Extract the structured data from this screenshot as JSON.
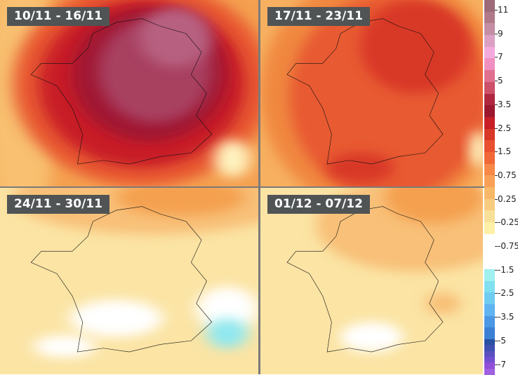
{
  "panels": [
    {
      "label": "10/11 - 16/11",
      "background": "#f4a050",
      "blobs": [
        {
          "c": "#f8c070",
          "cx": 8,
          "cy": 50,
          "rx": 14,
          "ry": 80
        },
        {
          "c": "#e85a30",
          "cx": 55,
          "cy": 45,
          "rx": 50,
          "ry": 55
        },
        {
          "c": "#c81e28",
          "cx": 55,
          "cy": 45,
          "rx": 40,
          "ry": 45
        },
        {
          "c": "#a01830",
          "cx": 58,
          "cy": 40,
          "rx": 30,
          "ry": 36
        },
        {
          "c": "#a84060",
          "cx": 60,
          "cy": 38,
          "rx": 22,
          "ry": 28
        },
        {
          "c": "#b86080",
          "cx": 68,
          "cy": 20,
          "rx": 14,
          "ry": 16
        },
        {
          "c": "#fff3c0",
          "cx": 90,
          "cy": 85,
          "rx": 7,
          "ry": 10
        }
      ]
    },
    {
      "label": "17/11 - 23/11",
      "background": "#f7b060",
      "blobs": [
        {
          "c": "#f08840",
          "cx": 55,
          "cy": 50,
          "rx": 55,
          "ry": 65
        },
        {
          "c": "#e85a30",
          "cx": 58,
          "cy": 52,
          "rx": 45,
          "ry": 55
        },
        {
          "c": "#d83828",
          "cx": 70,
          "cy": 25,
          "rx": 25,
          "ry": 25
        },
        {
          "c": "#d83828",
          "cx": 45,
          "cy": 90,
          "rx": 15,
          "ry": 8
        },
        {
          "c": "#fff3c0",
          "cx": 98,
          "cy": 80,
          "rx": 4,
          "ry": 10
        }
      ]
    },
    {
      "label": "24/11 - 30/11",
      "background": "#fbe4a4",
      "blobs": [
        {
          "c": "#f8c078",
          "cx": 60,
          "cy": 5,
          "rx": 55,
          "ry": 20
        },
        {
          "c": "#f4a050",
          "cx": 70,
          "cy": 5,
          "rx": 25,
          "ry": 10
        },
        {
          "c": "#ffffff",
          "cx": 45,
          "cy": 70,
          "rx": 18,
          "ry": 10
        },
        {
          "c": "#ffffff",
          "cx": 25,
          "cy": 85,
          "rx": 12,
          "ry": 6
        },
        {
          "c": "#ffffff",
          "cx": 88,
          "cy": 65,
          "rx": 12,
          "ry": 12
        },
        {
          "c": "#90e8f0",
          "cx": 88,
          "cy": 78,
          "rx": 8,
          "ry": 8
        }
      ]
    },
    {
      "label": "01/12 - 07/12",
      "background": "#fbe4a4",
      "blobs": [
        {
          "c": "#f8c078",
          "cx": 70,
          "cy": 20,
          "rx": 45,
          "ry": 25
        },
        {
          "c": "#f4a050",
          "cx": 78,
          "cy": 5,
          "rx": 22,
          "ry": 14
        },
        {
          "c": "#ffffff",
          "cx": 50,
          "cy": 80,
          "rx": 14,
          "ry": 8
        },
        {
          "c": "#f8c078",
          "cx": 82,
          "cy": 62,
          "rx": 8,
          "ry": 6
        }
      ]
    }
  ],
  "colorbar": {
    "colors": [
      "#9c6a78",
      "#b07a8a",
      "#c48ea4",
      "#dca0c4",
      "#f4aadc",
      "#f090c0",
      "#e07090",
      "#cc5068",
      "#b02840",
      "#9c1830",
      "#c81e28",
      "#d83828",
      "#e85030",
      "#f06838",
      "#f88848",
      "#f8a058",
      "#f8b868",
      "#f8cc80",
      "#f8e098",
      "#fff0a8",
      "#ffffff",
      "#ffffff",
      "#ffffff",
      "#a0f0f0",
      "#80e0f0",
      "#70ccf0",
      "#60b4f0",
      "#4c98e4",
      "#3c80d4",
      "#2c68bc",
      "#1c54a0",
      "#104890"
    ],
    "labels": [
      "11",
      "9",
      "7",
      "5",
      "3.5",
      "2.5",
      "1.5",
      "0.75",
      "0.25",
      "-0.25",
      "-0.75",
      "-1.5",
      "-2.5",
      "-3.5",
      "-5",
      "-7"
    ],
    "extra_colors": [
      "#2850a0",
      "#4050b0",
      "#5a50c0",
      "#7050d0",
      "#9050d8",
      "#a060e0"
    ]
  }
}
